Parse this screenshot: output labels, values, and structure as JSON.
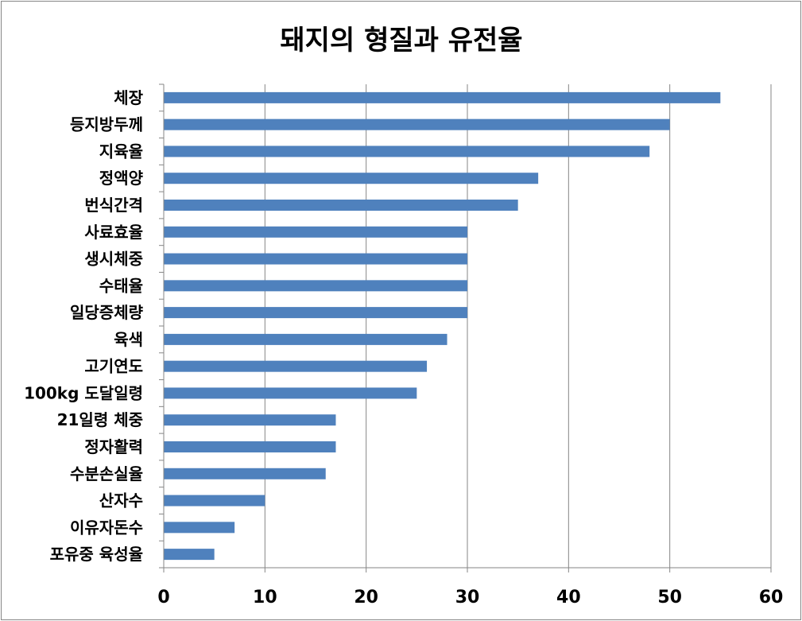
{
  "chart_data": {
    "type": "bar",
    "orientation": "horizontal",
    "title": "돼지의 형질과 유전율",
    "categories": [
      "체장",
      "등지방두께",
      "지육율",
      "정액양",
      "번식간격",
      "사료효율",
      "생시체중",
      "수태율",
      "일당증체량",
      "육색",
      "고기연도",
      "100kg 도달일령",
      "21일령 체중",
      "정자활력",
      "수분손실율",
      "산자수",
      "이유자돈수",
      "포유중 육성율"
    ],
    "values": [
      55,
      50,
      48,
      37,
      35,
      30,
      30,
      30,
      30,
      28,
      26,
      25,
      17,
      17,
      16,
      10,
      7,
      5
    ],
    "xlim": [
      0,
      60
    ],
    "xticks": [
      "0",
      "10",
      "20",
      "30",
      "40",
      "50",
      "60"
    ],
    "grid": true,
    "legend": "none",
    "bar_color": "#4F81BD"
  }
}
